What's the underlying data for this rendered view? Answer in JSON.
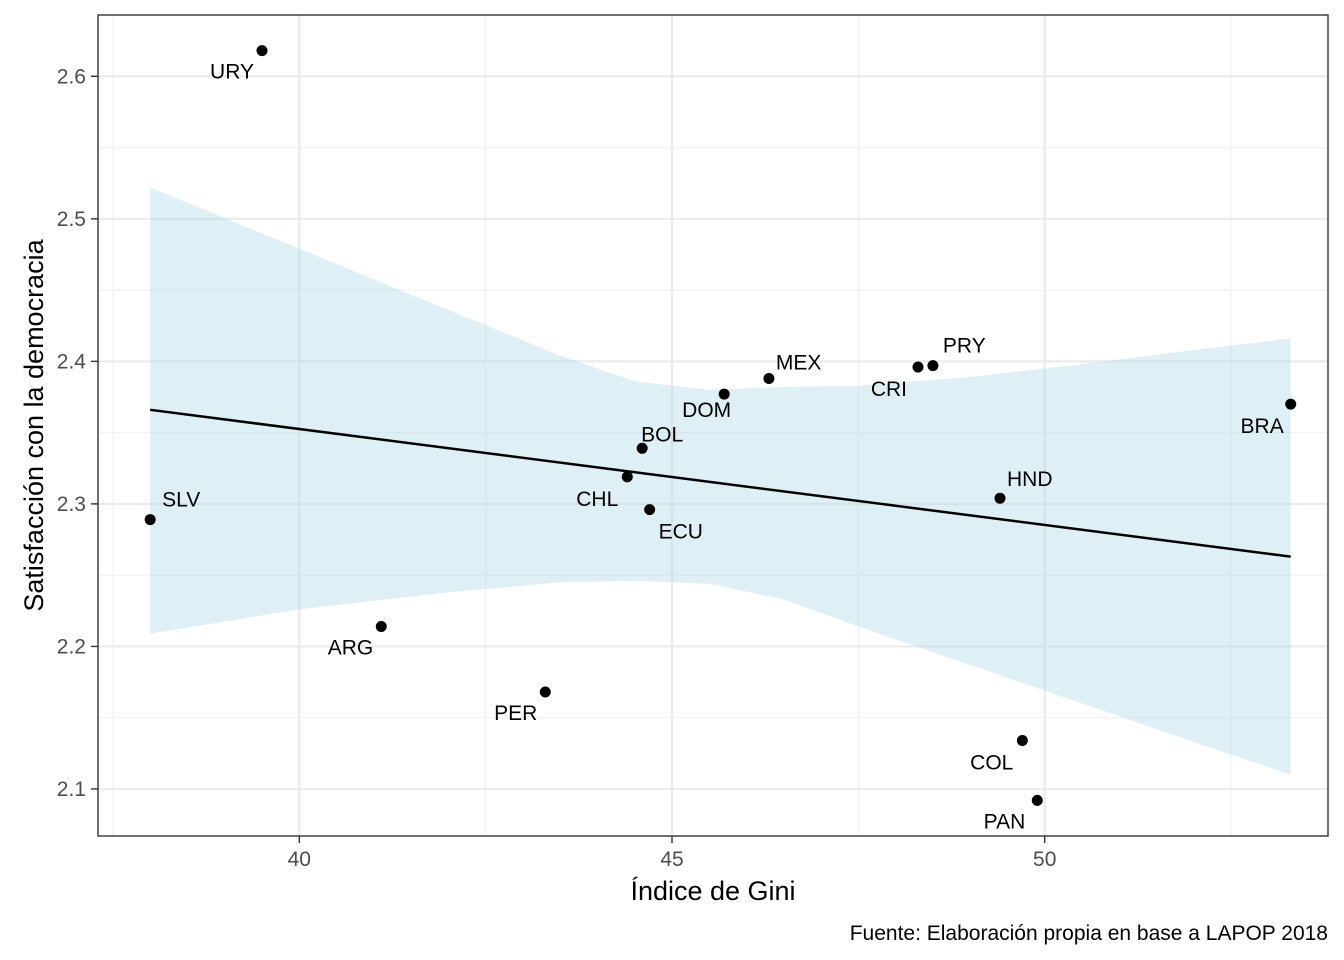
{
  "chart_data": {
    "type": "scatter",
    "title": "",
    "xlabel": "Índice de Gini",
    "ylabel": "Satisfacción con la democracia",
    "caption": "Fuente: Elaboración propia en base a LAPOP 2018",
    "xlim": [
      37.3,
      53.8
    ],
    "ylim": [
      2.067,
      2.643
    ],
    "x_ticks": [
      40,
      45,
      50
    ],
    "y_ticks": [
      2.1,
      2.2,
      2.3,
      2.4,
      2.5,
      2.6
    ],
    "x_tick_labels": [
      "40",
      "45",
      "50"
    ],
    "y_tick_labels": [
      "2.1",
      "2.2",
      "2.3",
      "2.4",
      "2.5",
      "2.6"
    ],
    "grid": true,
    "points": [
      {
        "label": "URY",
        "x": 39.5,
        "y": 2.618
      },
      {
        "label": "SLV",
        "x": 38.0,
        "y": 2.289
      },
      {
        "label": "ARG",
        "x": 41.1,
        "y": 2.214
      },
      {
        "label": "PER",
        "x": 43.3,
        "y": 2.168
      },
      {
        "label": "CHL",
        "x": 44.4,
        "y": 2.319
      },
      {
        "label": "BOL",
        "x": 44.6,
        "y": 2.339
      },
      {
        "label": "ECU",
        "x": 44.7,
        "y": 2.296
      },
      {
        "label": "DOM",
        "x": 45.7,
        "y": 2.377
      },
      {
        "label": "MEX",
        "x": 46.3,
        "y": 2.388
      },
      {
        "label": "CRI",
        "x": 48.3,
        "y": 2.396
      },
      {
        "label": "PRY",
        "x": 48.5,
        "y": 2.397
      },
      {
        "label": "HND",
        "x": 49.4,
        "y": 2.304
      },
      {
        "label": "COL",
        "x": 49.7,
        "y": 2.134
      },
      {
        "label": "PAN",
        "x": 49.9,
        "y": 2.092
      },
      {
        "label": "BRA",
        "x": 53.3,
        "y": 2.37
      }
    ],
    "regression": {
      "x": [
        38.0,
        53.3
      ],
      "y": [
        2.366,
        2.263
      ]
    },
    "confidence_band": {
      "x": [
        38.0,
        40.0,
        42.0,
        43.5,
        44.5,
        45.5,
        46.5,
        47.5,
        49.0,
        50.5,
        52.0,
        53.3
      ],
      "upper": [
        2.522,
        2.479,
        2.436,
        2.404,
        2.386,
        2.38,
        2.382,
        2.383,
        2.389,
        2.398,
        2.408,
        2.416
      ],
      "lower": [
        2.209,
        2.226,
        2.238,
        2.245,
        2.246,
        2.244,
        2.233,
        2.214,
        2.187,
        2.16,
        2.133,
        2.11
      ]
    },
    "colors": {
      "band": "#add8e6",
      "line": "#000000",
      "point": "#000000"
    }
  }
}
